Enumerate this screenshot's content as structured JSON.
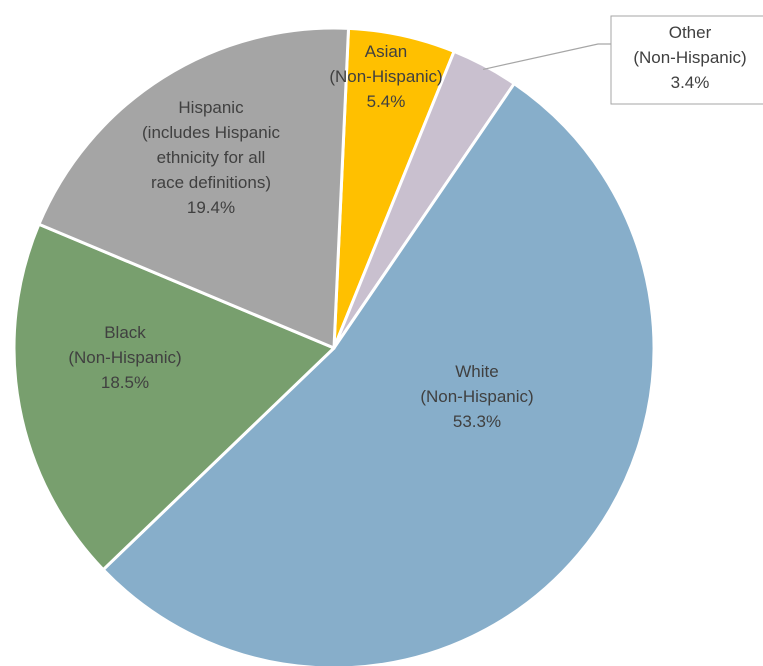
{
  "chart_data": {
    "type": "pie",
    "title": "",
    "start_angle_deg": 2.6,
    "direction": "clockwise",
    "slices": [
      {
        "label_lines": [
          "Asian",
          "(Non-Hispanic)"
        ],
        "value_label": "5.4%",
        "value": 5.4,
        "color": "#FFC000"
      },
      {
        "label_lines": [
          "Other",
          "(Non-Hispanic)"
        ],
        "value_label": "3.4%",
        "value": 3.4,
        "color": "#C9C0CF",
        "callout": true
      },
      {
        "label_lines": [
          "White",
          "(Non-Hispanic)"
        ],
        "value_label": "53.3%",
        "value": 53.3,
        "color": "#87AECA"
      },
      {
        "label_lines": [
          "Black",
          "(Non-Hispanic)"
        ],
        "value_label": "18.5%",
        "value": 18.5,
        "color": "#789F6E"
      },
      {
        "label_lines": [
          "Hispanic",
          "(includes Hispanic",
          "ethnicity for all",
          "race definitions)"
        ],
        "value_label": "19.4%",
        "value": 19.4,
        "color": "#A5A5A5"
      }
    ],
    "slice_border_color": "#FFFFFF"
  }
}
